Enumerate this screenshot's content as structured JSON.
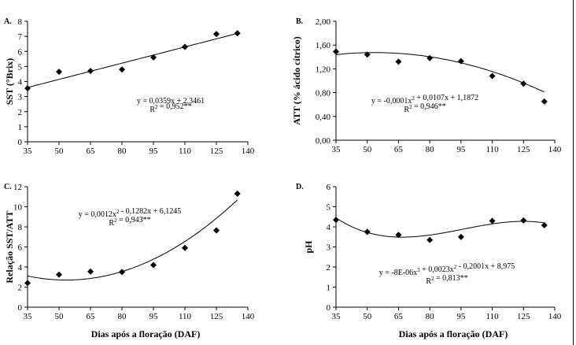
{
  "chart_data": [
    {
      "panel": "A.",
      "type": "scatter",
      "ylabel": "SST (°Brix)",
      "xlabel": "",
      "x_ticks": [
        "35",
        "50",
        "65",
        "80",
        "95",
        "110",
        "125",
        "140"
      ],
      "y_ticks": [
        "0",
        "1",
        "2",
        "3",
        "4",
        "5",
        "6",
        "7",
        "8"
      ],
      "xlim": [
        35,
        140
      ],
      "ylim": [
        0,
        8
      ],
      "x": [
        35,
        50,
        65,
        80,
        95,
        110,
        125,
        135
      ],
      "y": [
        3.55,
        4.65,
        4.7,
        4.8,
        5.6,
        6.3,
        7.15,
        7.2
      ],
      "fit": {
        "type": "poly",
        "coef": [
          2.3461,
          0.0359
        ],
        "x_range": [
          35,
          135
        ]
      },
      "equation": "y = 0,0359x + 2,3461",
      "r2": "R² = 0,952**"
    },
    {
      "panel": "B.",
      "type": "scatter",
      "ylabel": "ATT (% ácido cítrico)",
      "xlabel": "",
      "x_ticks": [
        "35",
        "50",
        "65",
        "80",
        "95",
        "110",
        "125",
        "140"
      ],
      "y_ticks": [
        "0,00",
        "0,40",
        "0,80",
        "1,20",
        "1,60",
        "2,00"
      ],
      "xlim": [
        35,
        140
      ],
      "ylim": [
        0,
        2.0
      ],
      "x": [
        35,
        50,
        65,
        80,
        95,
        110,
        125,
        135
      ],
      "y": [
        1.49,
        1.44,
        1.32,
        1.38,
        1.33,
        1.08,
        0.95,
        0.65
      ],
      "fit": {
        "type": "poly",
        "coef": [
          1.1872,
          0.0107,
          -0.0001
        ],
        "x_range": [
          35,
          135
        ]
      },
      "equation": "y = -0,0001x² + 0,0107x + 1,1872",
      "r2": "R² = 0,946**"
    },
    {
      "panel": "C.",
      "type": "scatter",
      "ylabel": "Relação SST/ATT",
      "xlabel": "Dias após a floração (DAF)",
      "x_ticks": [
        "35",
        "50",
        "65",
        "80",
        "95",
        "110",
        "125",
        "140"
      ],
      "y_ticks": [
        "0",
        "2",
        "4",
        "6",
        "8",
        "10",
        "12"
      ],
      "xlim": [
        35,
        140
      ],
      "ylim": [
        0,
        12
      ],
      "x": [
        35,
        50,
        65,
        80,
        95,
        110,
        125,
        135
      ],
      "y": [
        2.4,
        3.25,
        3.55,
        3.5,
        4.2,
        5.9,
        7.65,
        11.3
      ],
      "fit": {
        "type": "poly",
        "coef": [
          6.1245,
          -0.1282,
          0.0012
        ],
        "x_range": [
          35,
          135
        ]
      },
      "equation": "y = 0,0012x² - 0,1282x + 6,1245",
      "r2": "R² = 0,943**"
    },
    {
      "panel": "D.",
      "type": "scatter",
      "ylabel": "pH",
      "xlabel": "Dias após a floração (DAF)",
      "x_ticks": [
        "35",
        "50",
        "65",
        "80",
        "95",
        "110",
        "125",
        "140"
      ],
      "y_ticks": [
        "0",
        "1",
        "2",
        "3",
        "4",
        "5",
        "6"
      ],
      "xlim": [
        35,
        140
      ],
      "ylim": [
        0,
        6
      ],
      "x": [
        35,
        50,
        65,
        80,
        95,
        110,
        125,
        135
      ],
      "y": [
        4.35,
        3.75,
        3.6,
        3.35,
        3.5,
        4.3,
        4.32,
        4.08
      ],
      "fit": {
        "type": "poly",
        "coef": [
          8.975,
          -0.2001,
          0.0023,
          -8e-06
        ],
        "x_range": [
          35,
          135
        ]
      },
      "equation": "y = -8E-06x³ + 0,0023x² - 0,2001x + 8,975",
      "r2": "R² = 0,813**"
    }
  ]
}
